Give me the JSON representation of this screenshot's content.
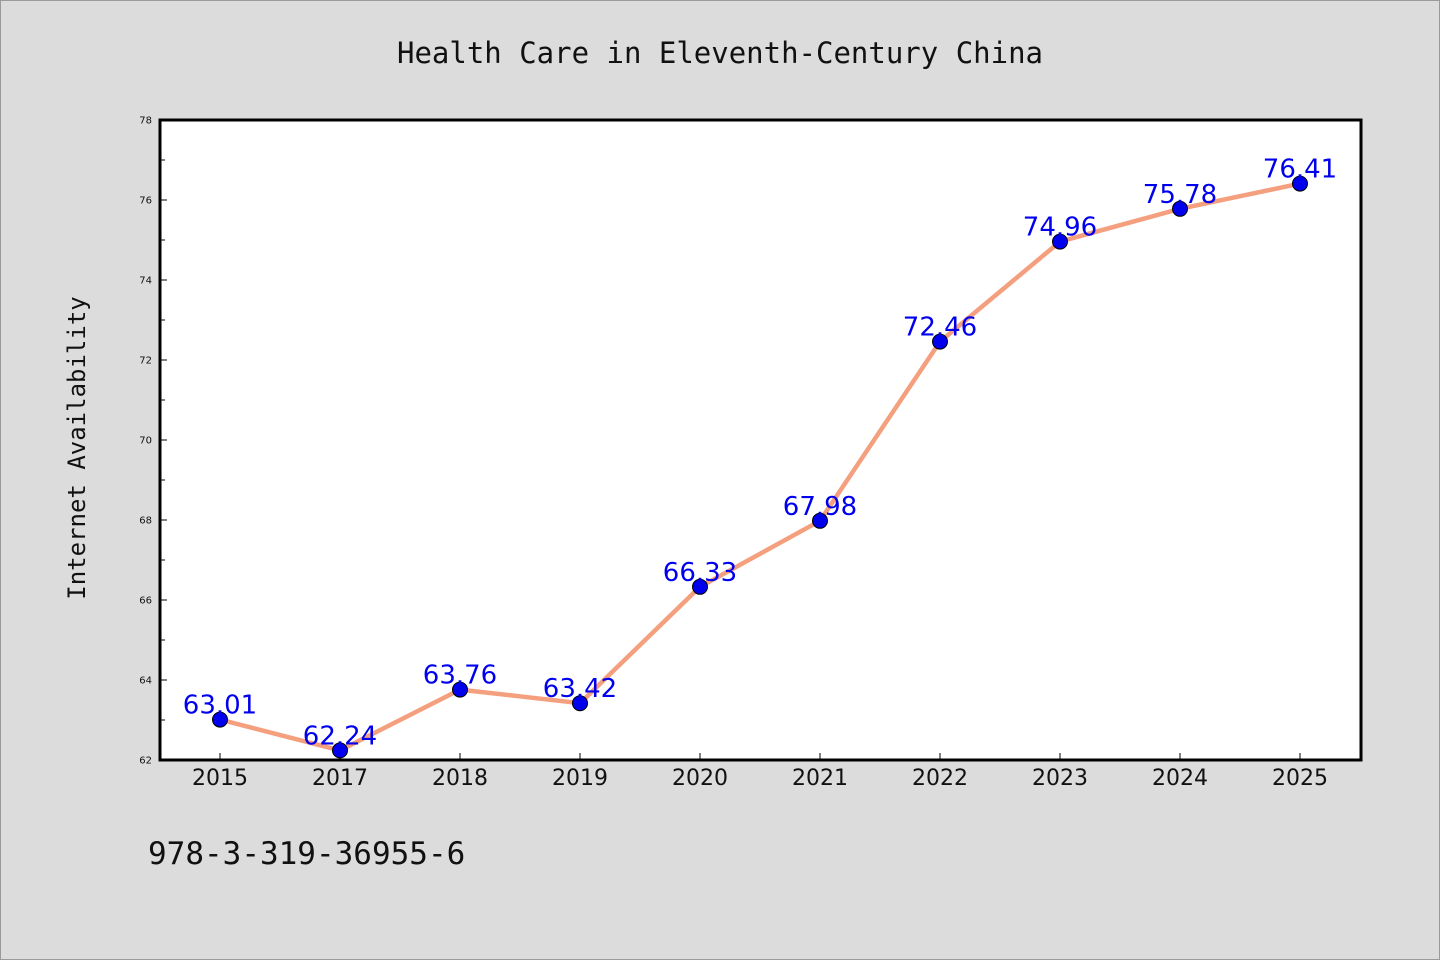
{
  "chart_data": {
    "type": "line",
    "title": "Health Care in Eleventh-Century China",
    "xlabel": "",
    "ylabel": "Internet Availability",
    "categories": [
      "2015",
      "2017",
      "2018",
      "2019",
      "2020",
      "2021",
      "2022",
      "2023",
      "2024",
      "2025"
    ],
    "series": [
      {
        "values": [
          63.01,
          62.24,
          63.76,
          63.42,
          66.33,
          67.98,
          72.46,
          74.96,
          75.78,
          76.41
        ],
        "labels": [
          "63.01",
          "62.24",
          "63.76",
          "63.42",
          "66.33",
          "67.98",
          "72.46",
          "74.96",
          "75.78",
          "76.41"
        ],
        "line_color": "#f4a07e",
        "marker_color": "#0000ee"
      }
    ],
    "ylim": [
      62,
      78
    ],
    "yticks": [
      "62",
      "64",
      "66",
      "68",
      "70",
      "72",
      "74",
      "76",
      "78"
    ],
    "grid": false,
    "legend": "none"
  },
  "footer": {
    "isbn": "978-3-319-36955-6"
  },
  "colors": {
    "background": "#dcdcdc",
    "plot_background": "#ffffff",
    "line": "#f4a07e",
    "marker": "#0000ee",
    "label": "#0000ee"
  }
}
